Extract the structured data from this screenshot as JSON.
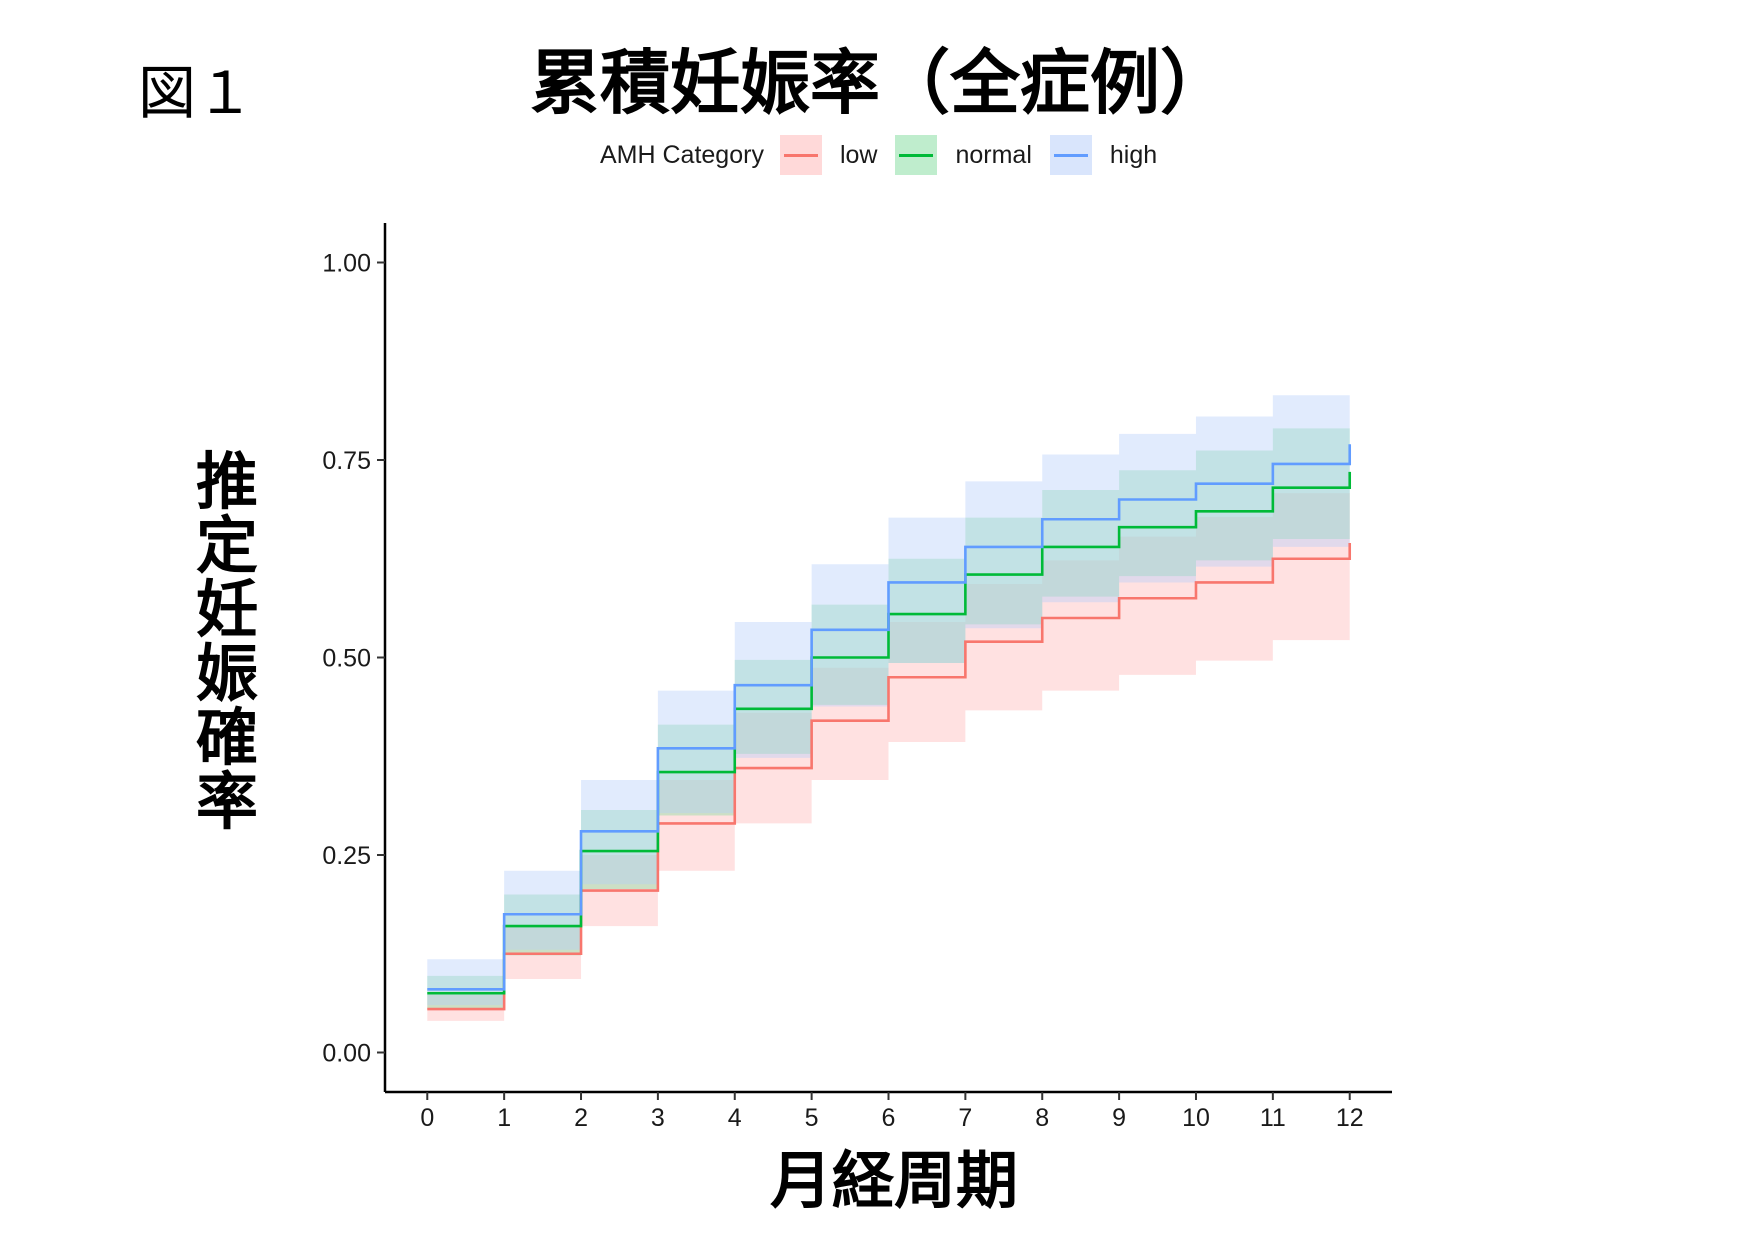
{
  "figure_label": "図１",
  "chart_data": {
    "type": "line",
    "title": "累積妊娠率（全症例）",
    "xlabel": "月経周期",
    "ylabel": "推定妊娠確率",
    "legend_title": "AMH Category",
    "legend_position": "top",
    "step": true,
    "confidence_bands": true,
    "grid": false,
    "x": [
      0,
      1,
      2,
      3,
      4,
      5,
      6,
      7,
      8,
      9,
      10,
      11,
      12
    ],
    "xlim": [
      -0.55,
      12.55
    ],
    "ylim": [
      -0.05,
      1.05
    ],
    "x_ticks": [
      "0",
      "1",
      "2",
      "3",
      "4",
      "5",
      "6",
      "7",
      "8",
      "9",
      "10",
      "11",
      "12"
    ],
    "y_ticks": [
      "0.00",
      "0.25",
      "0.50",
      "0.75",
      "1.00"
    ],
    "series": [
      {
        "name": "low",
        "color": "#f8766d",
        "band_color": "#ffb3b3",
        "values": [
          0.055,
          0.125,
          0.205,
          0.29,
          0.36,
          0.42,
          0.475,
          0.52,
          0.55,
          0.575,
          0.595,
          0.625,
          0.645
        ],
        "lower": [
          0.04,
          0.093,
          0.16,
          0.23,
          0.29,
          0.345,
          0.393,
          0.433,
          0.458,
          0.478,
          0.496,
          0.522,
          0.522
        ],
        "upper": [
          0.073,
          0.16,
          0.25,
          0.345,
          0.43,
          0.487,
          0.545,
          0.593,
          0.623,
          0.653,
          0.678,
          0.708,
          0.708
        ]
      },
      {
        "name": "normal",
        "color": "#00ba38",
        "band_color": "#7fdc9c",
        "values": [
          0.075,
          0.16,
          0.255,
          0.355,
          0.435,
          0.5,
          0.555,
          0.605,
          0.64,
          0.665,
          0.685,
          0.715,
          0.735
        ],
        "lower": [
          0.055,
          0.123,
          0.207,
          0.3,
          0.378,
          0.44,
          0.493,
          0.542,
          0.577,
          0.603,
          0.623,
          0.65,
          0.65
        ],
        "upper": [
          0.097,
          0.2,
          0.307,
          0.415,
          0.497,
          0.567,
          0.625,
          0.677,
          0.712,
          0.737,
          0.762,
          0.79,
          0.79
        ]
      },
      {
        "name": "high",
        "color": "#619cff",
        "band_color": "#b4ccfa",
        "values": [
          0.08,
          0.175,
          0.28,
          0.385,
          0.465,
          0.535,
          0.595,
          0.64,
          0.675,
          0.7,
          0.72,
          0.745,
          0.77
        ],
        "lower": [
          0.06,
          0.13,
          0.213,
          0.303,
          0.373,
          0.438,
          0.493,
          0.537,
          0.57,
          0.595,
          0.615,
          0.64,
          0.64
        ],
        "upper": [
          0.118,
          0.23,
          0.345,
          0.458,
          0.545,
          0.618,
          0.677,
          0.723,
          0.757,
          0.783,
          0.805,
          0.832,
          0.832
        ]
      }
    ]
  }
}
